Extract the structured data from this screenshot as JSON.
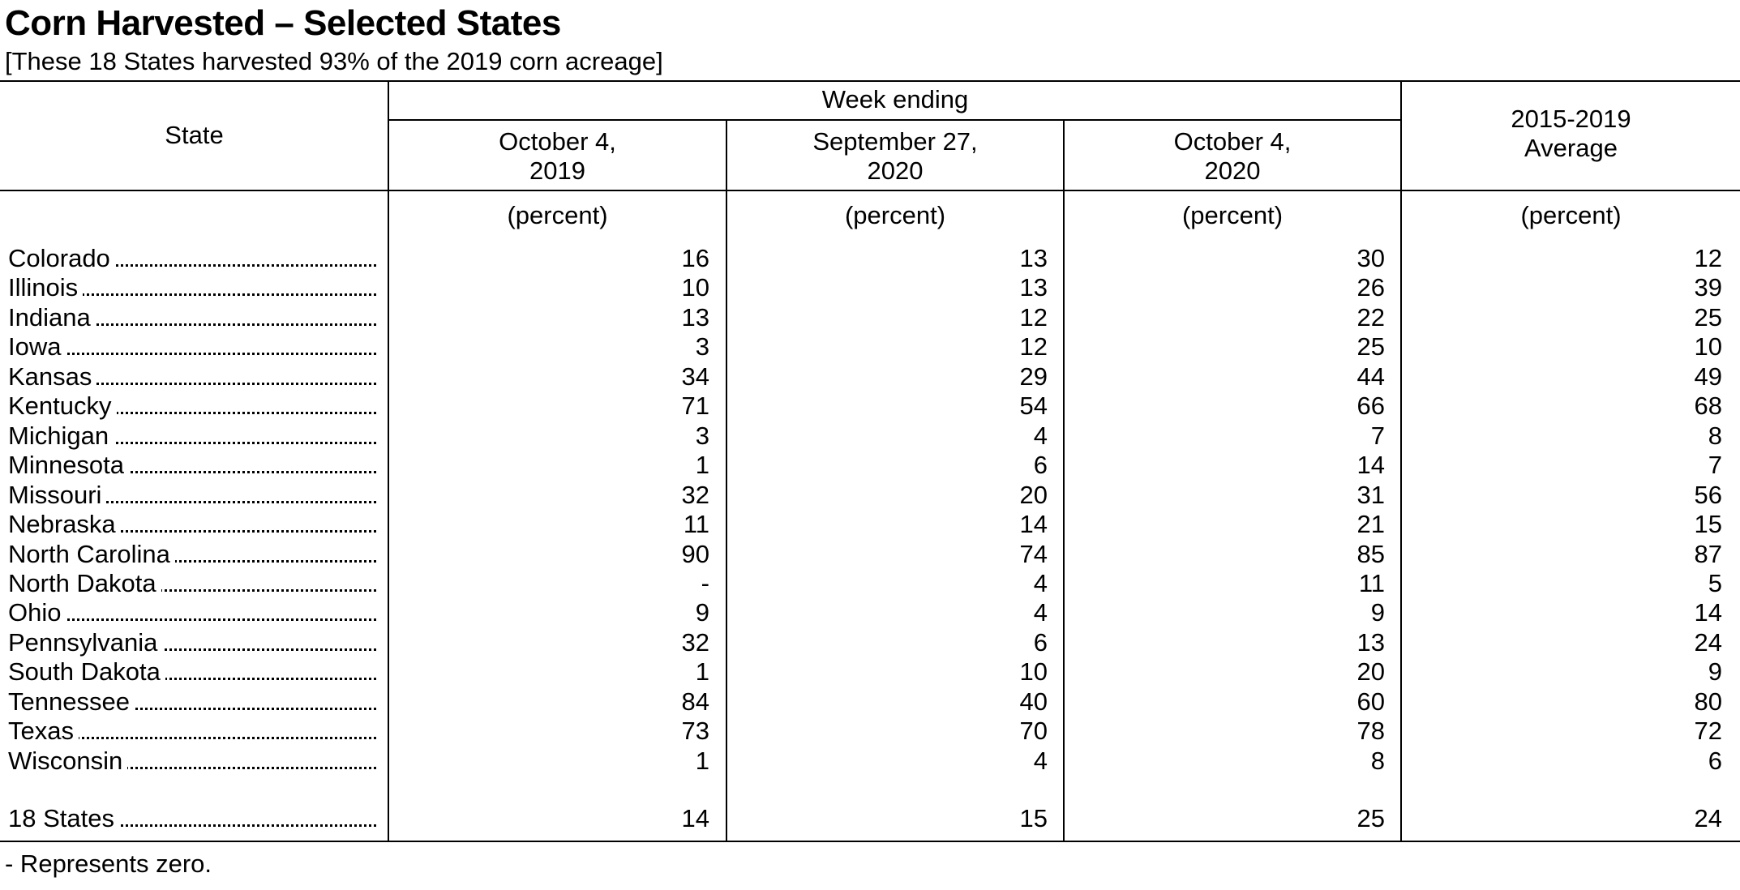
{
  "title": "Corn Harvested – Selected States",
  "subtitle": "[These 18 States harvested 93% of the 2019 corn acreage]",
  "header": {
    "state": "State",
    "week_ending": "Week ending",
    "col1_line1": "October 4,",
    "col1_line2": "2019",
    "col2_line1": "September 27,",
    "col2_line2": "2020",
    "col3_line1": "October 4,",
    "col3_line2": "2020",
    "col4_line1": "2015-2019",
    "col4_line2": "Average",
    "unit": "(percent)"
  },
  "rows": [
    {
      "state": "Colorado",
      "v": [
        "16",
        "13",
        "30",
        "12"
      ]
    },
    {
      "state": "Illinois",
      "v": [
        "10",
        "13",
        "26",
        "39"
      ]
    },
    {
      "state": "Indiana",
      "v": [
        "13",
        "12",
        "22",
        "25"
      ]
    },
    {
      "state": "Iowa",
      "v": [
        "3",
        "12",
        "25",
        "10"
      ]
    },
    {
      "state": "Kansas",
      "v": [
        "34",
        "29",
        "44",
        "49"
      ]
    },
    {
      "state": "Kentucky",
      "v": [
        "71",
        "54",
        "66",
        "68"
      ]
    },
    {
      "state": "Michigan",
      "v": [
        "3",
        "4",
        "7",
        "8"
      ]
    },
    {
      "state": "Minnesota",
      "v": [
        "1",
        "6",
        "14",
        "7"
      ]
    },
    {
      "state": "Missouri",
      "v": [
        "32",
        "20",
        "31",
        "56"
      ]
    },
    {
      "state": "Nebraska",
      "v": [
        "11",
        "14",
        "21",
        "15"
      ]
    },
    {
      "state": "North Carolina",
      "v": [
        "90",
        "74",
        "85",
        "87"
      ]
    },
    {
      "state": "North Dakota",
      "v": [
        "-",
        "4",
        "11",
        "5"
      ]
    },
    {
      "state": "Ohio",
      "v": [
        "9",
        "4",
        "9",
        "14"
      ]
    },
    {
      "state": "Pennsylvania",
      "v": [
        "32",
        "6",
        "13",
        "24"
      ]
    },
    {
      "state": "South Dakota",
      "v": [
        "1",
        "10",
        "20",
        "9"
      ]
    },
    {
      "state": "Tennessee",
      "v": [
        "84",
        "40",
        "60",
        "80"
      ]
    },
    {
      "state": "Texas",
      "v": [
        "73",
        "70",
        "78",
        "72"
      ]
    },
    {
      "state": "Wisconsin",
      "v": [
        "1",
        "4",
        "8",
        "6"
      ]
    }
  ],
  "total": {
    "state": "18 States",
    "v": [
      "14",
      "15",
      "25",
      "24"
    ]
  },
  "footnote": "- Represents zero."
}
